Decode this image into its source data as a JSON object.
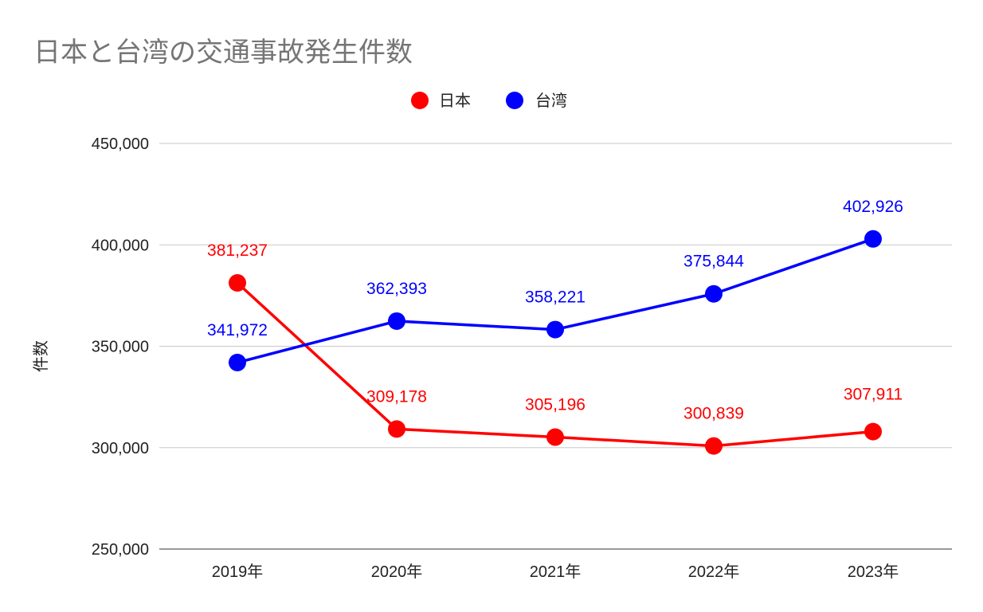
{
  "chart_data": {
    "type": "line",
    "title": "日本と台湾の交通事故発生件数",
    "ylabel": "件数",
    "xlabel": "",
    "categories": [
      "2019年",
      "2020年",
      "2021年",
      "2022年",
      "2023年"
    ],
    "yticks": [
      "250,000",
      "300,000",
      "350,000",
      "400,000",
      "450,000"
    ],
    "ylim": [
      250000,
      450000
    ],
    "grid": true,
    "legend": "top-center",
    "series": [
      {
        "name": "日本",
        "color": "#ff0000",
        "values": [
          381237,
          309178,
          305196,
          300839,
          307911
        ],
        "labels": [
          "381,237",
          "309,178",
          "305,196",
          "300,839",
          "307,911"
        ]
      },
      {
        "name": "台湾",
        "color": "#0000ff",
        "values": [
          341972,
          362393,
          358221,
          375844,
          402926
        ],
        "labels": [
          "341,972",
          "362,393",
          "358,221",
          "375,844",
          "402,926"
        ]
      }
    ]
  }
}
